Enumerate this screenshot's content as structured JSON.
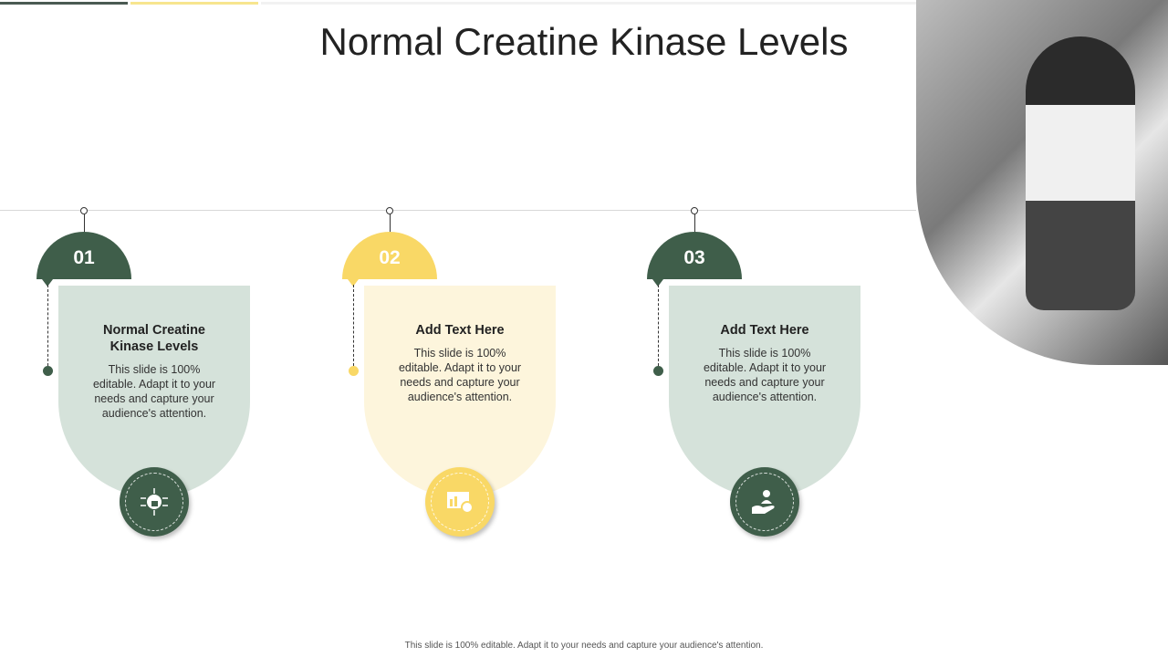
{
  "title": "Normal Creatine Kinase Levels",
  "colors": {
    "dark_green": "#3f5e4a",
    "yellow": "#f9d866",
    "light_green": "#d5e2da",
    "light_yellow": "#fdf5dc"
  },
  "steps": [
    {
      "number": "01",
      "heading": "Normal Creatine Kinase Levels",
      "body": "This slide is 100% editable. Adapt it to your needs and capture your audience's attention.",
      "icon": "network-lock-icon",
      "theme": "green"
    },
    {
      "number": "02",
      "heading": "Add Text Here",
      "body": "This slide is 100% editable. Adapt it to your needs and capture your audience's attention.",
      "icon": "dashboard-gear-icon",
      "theme": "yellow"
    },
    {
      "number": "03",
      "heading": "Add Text Here",
      "body": "This slide is 100% editable. Adapt it to your needs and capture your audience's attention.",
      "icon": "hand-user-icon",
      "theme": "green"
    }
  ],
  "footer": "This slide is 100% editable. Adapt it to your needs and capture your audience's attention."
}
